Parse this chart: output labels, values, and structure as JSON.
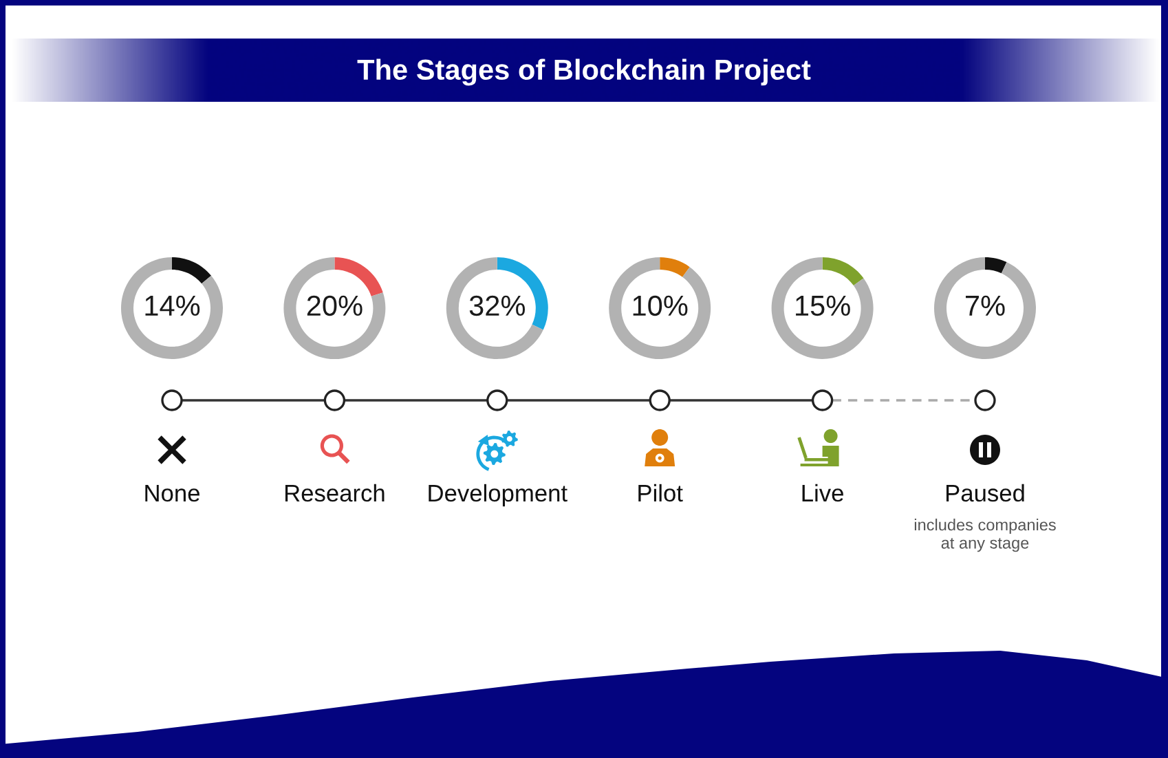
{
  "chart_data": [
    {
      "type": "donut",
      "title": "The Stages of Blockchain Project",
      "categories": [
        "None",
        null
      ],
      "values": [
        14,
        86
      ],
      "colors": [
        "#111111",
        "#b2b2b2"
      ],
      "value_labels": [
        "14%",
        null
      ]
    },
    {
      "type": "donut",
      "categories": [
        "Research",
        null
      ],
      "values": [
        20,
        80
      ],
      "colors": [
        "#e85353",
        "#b2b2b2"
      ],
      "value_labels": [
        "20%",
        null
      ]
    },
    {
      "type": "donut",
      "categories": [
        "Development",
        null
      ],
      "values": [
        32,
        68
      ],
      "colors": [
        "#1ba8e0",
        "#b2b2b2"
      ],
      "value_labels": [
        "32%",
        null
      ]
    },
    {
      "type": "donut",
      "categories": [
        "Pilot",
        null
      ],
      "values": [
        10,
        90
      ],
      "colors": [
        "#e07f0c",
        "#b2b2b2"
      ],
      "value_labels": [
        "10%",
        null
      ]
    },
    {
      "type": "donut",
      "categories": [
        "Live",
        null
      ],
      "values": [
        15,
        85
      ],
      "colors": [
        "#7fa22c",
        "#b2b2b2"
      ],
      "value_labels": [
        "15%",
        null
      ]
    },
    {
      "type": "donut",
      "categories": [
        "Paused",
        null
      ],
      "values": [
        7,
        93
      ],
      "colors": [
        "#111111",
        "#b2b2b2"
      ],
      "value_labels": [
        "7%",
        null
      ],
      "annotations": [
        "includes companies\nat any stage"
      ]
    }
  ]
}
